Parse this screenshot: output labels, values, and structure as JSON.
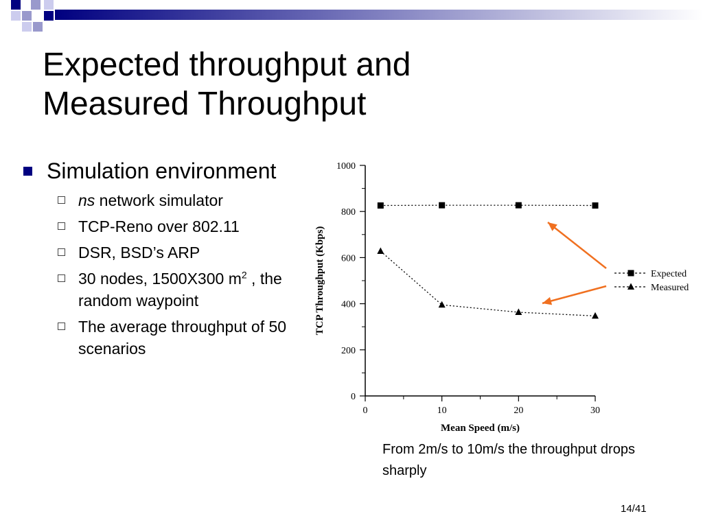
{
  "slide": {
    "title_line1": "Expected throughput and",
    "title_line2": "Measured Throughput",
    "page_number": "14/41",
    "colors": {
      "accent": "#000080",
      "deco_light": "#9999cc",
      "arrow": "#f07020"
    }
  },
  "bullets": {
    "main": "Simulation environment",
    "sub": [
      {
        "em": "ns",
        "text": " network simulator"
      },
      {
        "em": "",
        "text": "TCP-Reno over 802.11"
      },
      {
        "em": "",
        "text": "DSR, BSD’s ARP"
      },
      {
        "em": "",
        "text": "30 nodes, 1500X300 m",
        "sup": "2",
        "after": " , the random waypoint"
      },
      {
        "em": "",
        "text": "The average throughput of 50 scenarios"
      }
    ]
  },
  "note": "From 2m/s to 10m/s the throughput drops sharply",
  "chart_data": {
    "type": "line",
    "xlabel": "Mean Speed (m/s)",
    "ylabel": "TCP Throughput (Kbps)",
    "xlim": [
      0,
      30
    ],
    "ylim": [
      0,
      1000
    ],
    "x_ticks": [
      "0",
      "10",
      "20",
      "30"
    ],
    "y_ticks": [
      "0",
      "200",
      "400",
      "600",
      "800",
      "1000"
    ],
    "grid": false,
    "legend_position": "right",
    "series": [
      {
        "name": "Expected",
        "marker": "square",
        "x": [
          2,
          10,
          20,
          30
        ],
        "y": [
          826,
          827,
          827,
          826
        ]
      },
      {
        "name": "Measured",
        "marker": "triangle",
        "x": [
          2,
          10,
          20,
          30
        ],
        "y": [
          628,
          395,
          363,
          347
        ]
      }
    ]
  }
}
